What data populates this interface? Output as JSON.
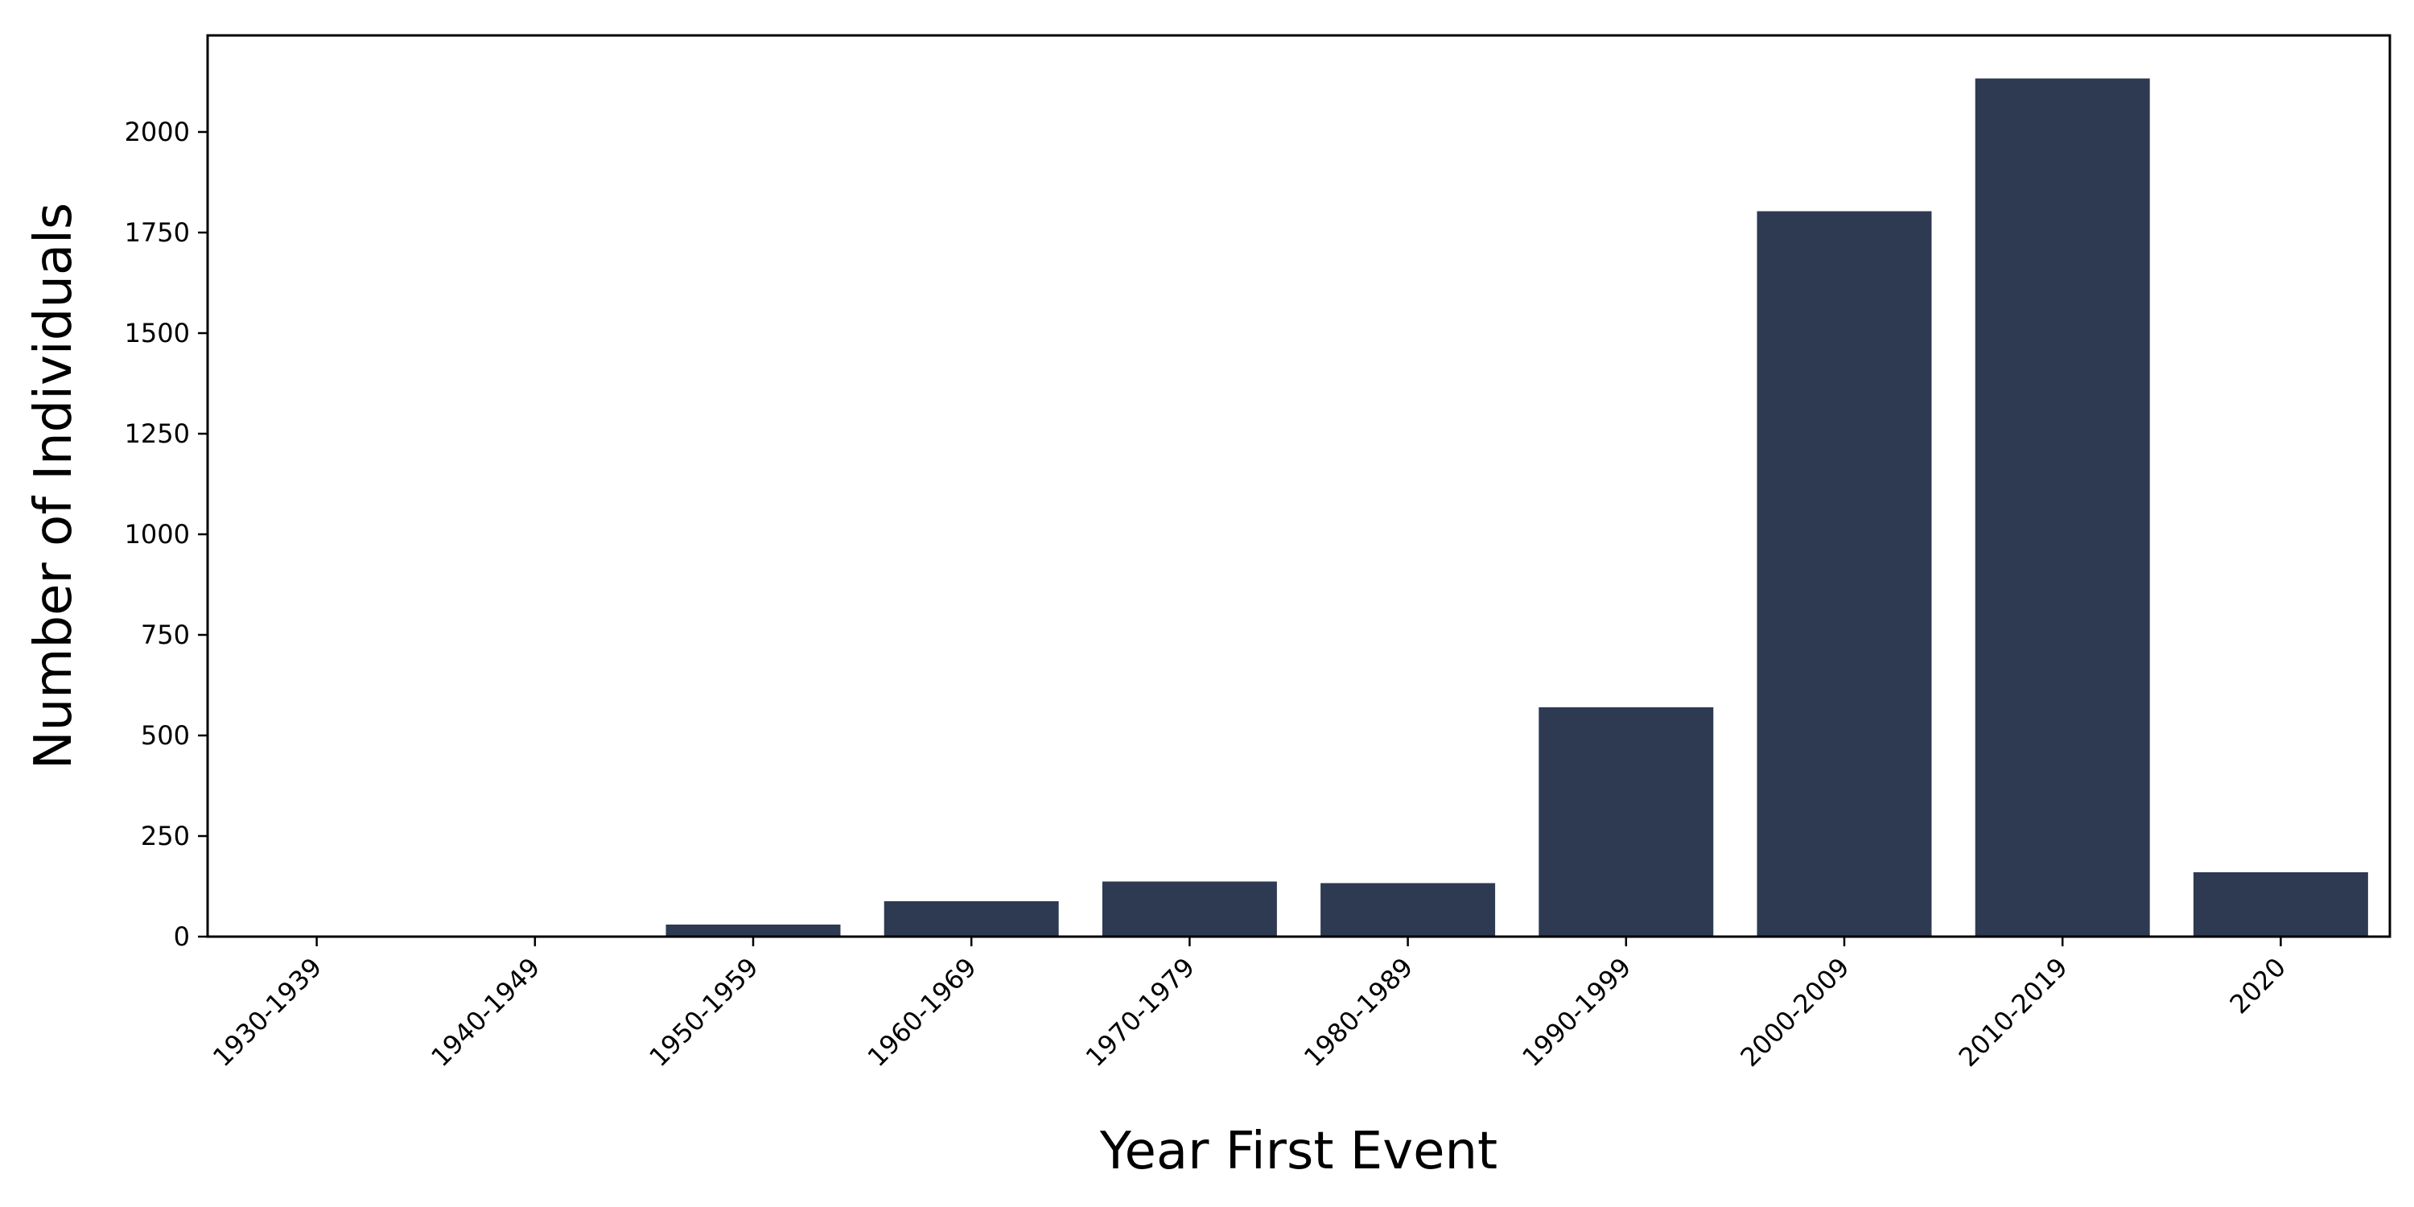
{
  "chart_data": {
    "type": "bar",
    "title": "",
    "xlabel": "Year First Event",
    "ylabel": "Number of Individuals",
    "categories": [
      "1930-1939",
      "1940-1949",
      "1950-1959",
      "1960-1969",
      "1970-1979",
      "1980-1989",
      "1990-1999",
      "2000-2009",
      "2010-2019",
      "2020"
    ],
    "values": [
      2,
      3,
      30,
      88,
      137,
      133,
      570,
      1803,
      2133,
      160
    ],
    "ylim": [
      0,
      2240
    ],
    "yticks": [
      0,
      250,
      500,
      750,
      1000,
      1250,
      1500,
      1750,
      2000
    ],
    "grid": false,
    "legend": "none",
    "bar_color": "#2d3a52"
  }
}
